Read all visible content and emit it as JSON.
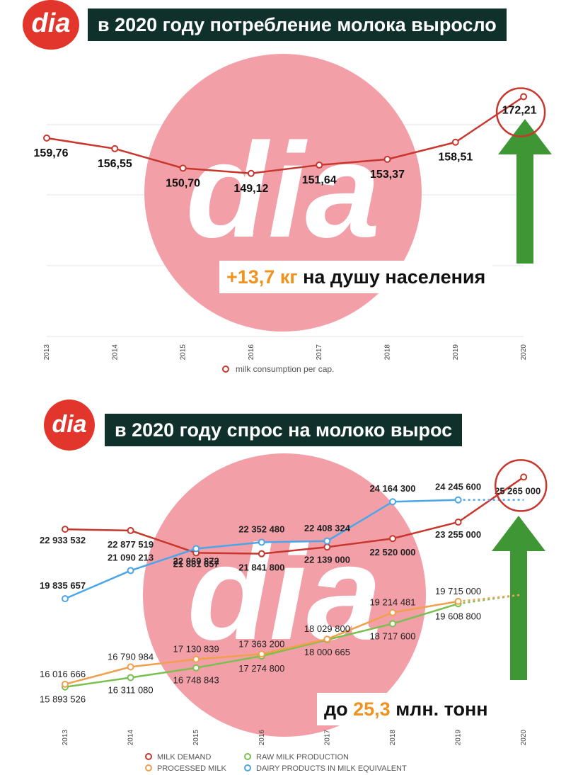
{
  "panel1": {
    "logo_text": "dia",
    "banner": "в 2020 году потребление молока выросло",
    "callout": {
      "accent": "+13,7 кг",
      "rest": " на душу населения"
    },
    "watermark_text": "dia"
  },
  "panel2": {
    "logo_text": "dia",
    "banner": "в 2020 году спрос на молоко вырос",
    "callout": {
      "pre": "до ",
      "accent": "25,3",
      "rest": " млн. тонн"
    },
    "watermark_text": "dia"
  },
  "colors": {
    "red": "#c8372d",
    "orange": "#f0a04b",
    "green": "#7ac04f",
    "blue": "#4aa6e8",
    "arrow": "#3f9634",
    "banner": "#10312b",
    "watermark": "#f19aa3",
    "accent": "#f0921e"
  },
  "chart_data": [
    {
      "type": "line",
      "categories": [
        "2013",
        "2014",
        "2015",
        "2016",
        "2017",
        "2018",
        "2019",
        "2020"
      ],
      "series": [
        {
          "name": "milk consumption per cap.",
          "values": [
            159.76,
            156.55,
            150.7,
            149.12,
            151.64,
            153.37,
            158.51,
            172.21
          ],
          "labels": [
            "159,76",
            "156,55",
            "150,70",
            "149,12",
            "151,64",
            "153,37",
            "158,51",
            "172,21"
          ]
        }
      ],
      "grid": true,
      "legend": "bottom"
    },
    {
      "type": "line",
      "categories": [
        "2013",
        "2014",
        "2015",
        "2016",
        "2017",
        "2018",
        "2019",
        "2020"
      ],
      "series": [
        {
          "name": "MILK DEMAND",
          "values": [
            22933532,
            22877519,
            21881657,
            21841800,
            22139000,
            22520000,
            23255000,
            25265000
          ],
          "labels": [
            "22 933 532",
            "22 877 519",
            "21 881 657",
            "21 841 800",
            "22 139 000",
            "22 520 000",
            "23 255 000",
            "25 265 000"
          ]
        },
        {
          "name": "RAW MILK PRODUCTION",
          "values": [
            15893526,
            16311080,
            16748843,
            17274800,
            18000665,
            18717600,
            19608800,
            null
          ],
          "labels": [
            "15 893 526",
            "16 311 080",
            "16 748 843",
            "17 274 800",
            "18 000 665",
            "18 717 600",
            "19 608 800",
            ""
          ]
        },
        {
          "name": "PROCESSED MILK",
          "values": [
            16016666,
            16790984,
            17130839,
            17363200,
            18029800,
            19214481,
            19715000,
            null
          ],
          "labels": [
            "16 016 666",
            "16 790 984",
            "17 130 839",
            "17 363 200",
            "18 029 800",
            "19 214 481",
            "19 715 000",
            ""
          ]
        },
        {
          "name": "DAIRY PRODUCTS IN MILK EQUIVALENT",
          "values": [
            19835657,
            21090213,
            22069872,
            22352480,
            22408324,
            24164300,
            24245600,
            null
          ],
          "labels": [
            "19 835 657",
            "21 090 213",
            "22 069 872",
            "22 352 480",
            "22 408 324",
            "24 164 300",
            "24 245 600",
            ""
          ]
        }
      ],
      "grid": false,
      "legend": "bottom"
    }
  ]
}
